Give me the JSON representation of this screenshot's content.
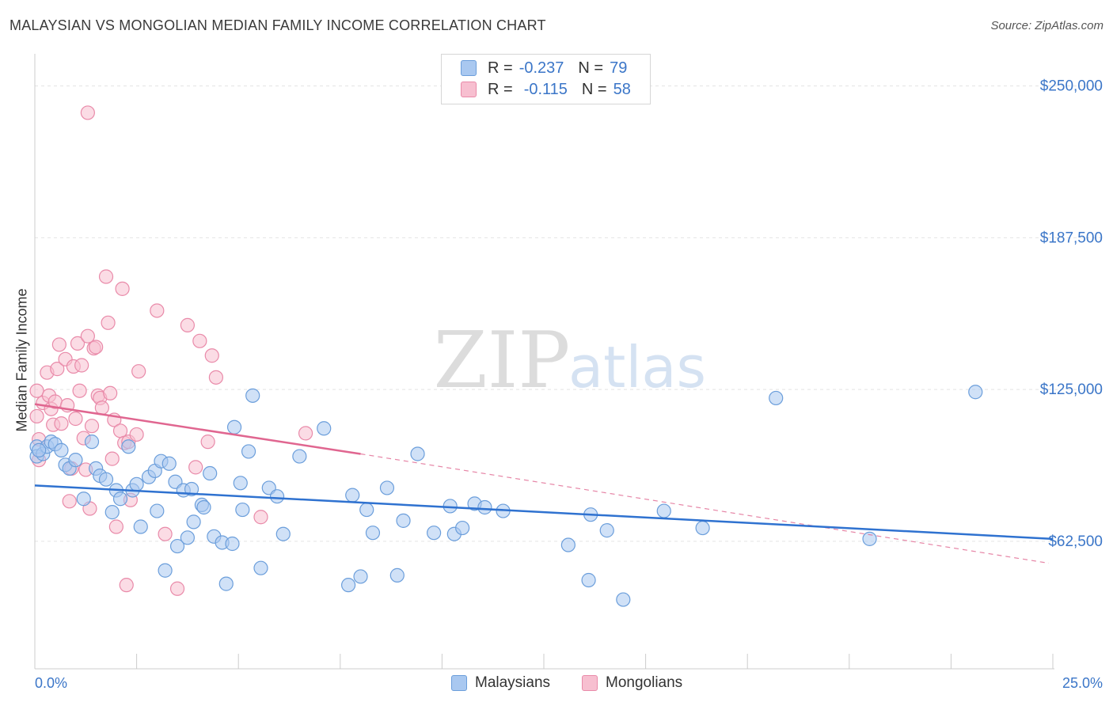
{
  "title": "MALAYSIAN VS MONGOLIAN MEDIAN FAMILY INCOME CORRELATION CHART",
  "source": "Source: ZipAtlas.com",
  "watermark": {
    "zip": "ZIP",
    "atlas": "atlas"
  },
  "legend": {
    "malaysians": {
      "r_label": "R =",
      "r_value": "-0.237",
      "n_label": "N =",
      "n_value": "79"
    },
    "mongolians": {
      "r_label": "R =",
      "r_value": "-0.115",
      "n_label": "N =",
      "n_value": "58"
    }
  },
  "bottom_legend": {
    "malaysians": "Malaysians",
    "mongolians": "Mongolians"
  },
  "colors": {
    "blue_fill": "#a9c8f0",
    "blue_stroke": "#6b9edb",
    "blue_line": "#2f72d0",
    "pink_fill": "#f7bfd0",
    "pink_stroke": "#e98aa9",
    "pink_line": "#e06690",
    "axis_text": "#3b76c8",
    "grid": "#e4e4e4"
  },
  "chart_data": {
    "type": "scatter",
    "title": "MALAYSIAN VS MONGOLIAN MEDIAN FAMILY INCOME CORRELATION CHART",
    "xlabel": "",
    "ylabel": "Median Family Income",
    "xlim": [
      0,
      25
    ],
    "ylim": [
      10000,
      260000
    ],
    "x_tick_labels": [
      "0.0%",
      "25.0%"
    ],
    "y_ticks": [
      62500,
      125000,
      187500,
      250000
    ],
    "y_tick_labels": [
      "$62,500",
      "$125,000",
      "$187,500",
      "$250,000"
    ],
    "series": [
      {
        "name": "Malaysians",
        "r": -0.237,
        "n": 79,
        "trend": {
          "x0": 0,
          "y0": 85500,
          "x1": 25,
          "y1": 63500
        },
        "points": [
          [
            0.05,
            101500
          ],
          [
            0.05,
            97500
          ],
          [
            0.2,
            98500
          ],
          [
            0.3,
            101500
          ],
          [
            0.4,
            103500
          ],
          [
            0.5,
            102500
          ],
          [
            0.65,
            100000
          ],
          [
            0.75,
            94000
          ],
          [
            0.85,
            92500
          ],
          [
            1.0,
            96000
          ],
          [
            1.2,
            80000
          ],
          [
            1.4,
            103500
          ],
          [
            1.5,
            92500
          ],
          [
            1.6,
            89500
          ],
          [
            1.75,
            88000
          ],
          [
            1.9,
            74500
          ],
          [
            2.0,
            83500
          ],
          [
            2.1,
            80000
          ],
          [
            2.3,
            101500
          ],
          [
            2.4,
            83500
          ],
          [
            2.5,
            86000
          ],
          [
            2.6,
            68500
          ],
          [
            2.8,
            89000
          ],
          [
            2.95,
            91500
          ],
          [
            3.0,
            75000
          ],
          [
            3.1,
            95500
          ],
          [
            3.2,
            50500
          ],
          [
            3.3,
            94500
          ],
          [
            3.45,
            87000
          ],
          [
            3.5,
            60500
          ],
          [
            3.65,
            83500
          ],
          [
            3.75,
            64000
          ],
          [
            3.85,
            84000
          ],
          [
            3.9,
            70500
          ],
          [
            4.1,
            77500
          ],
          [
            4.15,
            76500
          ],
          [
            4.3,
            90500
          ],
          [
            4.4,
            64500
          ],
          [
            4.6,
            62000
          ],
          [
            4.7,
            45000
          ],
          [
            4.85,
            61500
          ],
          [
            4.9,
            109500
          ],
          [
            5.05,
            86500
          ],
          [
            5.1,
            75500
          ],
          [
            5.25,
            99500
          ],
          [
            5.35,
            122500
          ],
          [
            5.55,
            51500
          ],
          [
            5.75,
            84500
          ],
          [
            5.95,
            81000
          ],
          [
            6.1,
            65500
          ],
          [
            6.5,
            97500
          ],
          [
            7.1,
            109000
          ],
          [
            7.7,
            44500
          ],
          [
            7.8,
            81500
          ],
          [
            8.0,
            48000
          ],
          [
            8.15,
            75500
          ],
          [
            8.3,
            66000
          ],
          [
            8.65,
            84500
          ],
          [
            8.9,
            48500
          ],
          [
            9.05,
            71000
          ],
          [
            9.4,
            98500
          ],
          [
            9.8,
            66000
          ],
          [
            10.2,
            77000
          ],
          [
            10.3,
            65500
          ],
          [
            10.5,
            68000
          ],
          [
            10.8,
            78000
          ],
          [
            11.05,
            76500
          ],
          [
            11.5,
            75000
          ],
          [
            13.1,
            61000
          ],
          [
            13.6,
            46500
          ],
          [
            13.65,
            73500
          ],
          [
            14.05,
            67000
          ],
          [
            14.45,
            38500
          ],
          [
            15.45,
            75000
          ],
          [
            16.4,
            68000
          ],
          [
            18.2,
            121500
          ],
          [
            20.5,
            63500
          ],
          [
            23.1,
            124000
          ],
          [
            0.1,
            100000
          ]
        ]
      },
      {
        "name": "Mongolians",
        "r": -0.115,
        "n": 58,
        "trend": {
          "x0": 0,
          "y0": 119000,
          "x1": 8.0,
          "y1": 98500
        },
        "trend_ext": {
          "x0": 8.0,
          "y0": 98500,
          "x1": 24.9,
          "y1": 53500
        },
        "points": [
          [
            0.05,
            124500
          ],
          [
            0.05,
            114000
          ],
          [
            0.1,
            104500
          ],
          [
            0.1,
            96000
          ],
          [
            0.2,
            119500
          ],
          [
            0.3,
            132000
          ],
          [
            0.35,
            122500
          ],
          [
            0.4,
            117000
          ],
          [
            0.45,
            110500
          ],
          [
            0.5,
            120000
          ],
          [
            0.55,
            133500
          ],
          [
            0.6,
            143500
          ],
          [
            0.65,
            111000
          ],
          [
            0.75,
            137500
          ],
          [
            0.8,
            118500
          ],
          [
            0.85,
            79000
          ],
          [
            0.9,
            92500
          ],
          [
            0.95,
            134500
          ],
          [
            1.0,
            113000
          ],
          [
            1.05,
            144000
          ],
          [
            1.1,
            124500
          ],
          [
            1.15,
            135000
          ],
          [
            1.2,
            105000
          ],
          [
            1.25,
            92000
          ],
          [
            1.3,
            147000
          ],
          [
            1.35,
            76000
          ],
          [
            1.4,
            110000
          ],
          [
            1.45,
            142000
          ],
          [
            1.5,
            142500
          ],
          [
            1.55,
            122500
          ],
          [
            1.6,
            121500
          ],
          [
            1.65,
            117500
          ],
          [
            1.75,
            171500
          ],
          [
            1.8,
            152500
          ],
          [
            1.85,
            123500
          ],
          [
            1.9,
            96500
          ],
          [
            1.95,
            112500
          ],
          [
            2.0,
            68500
          ],
          [
            2.1,
            108000
          ],
          [
            2.15,
            166500
          ],
          [
            2.2,
            103000
          ],
          [
            2.25,
            44500
          ],
          [
            2.3,
            103500
          ],
          [
            2.35,
            79500
          ],
          [
            2.5,
            106500
          ],
          [
            2.55,
            132500
          ],
          [
            3.0,
            157500
          ],
          [
            3.2,
            65500
          ],
          [
            3.5,
            43000
          ],
          [
            3.75,
            151500
          ],
          [
            3.95,
            93000
          ],
          [
            4.05,
            145000
          ],
          [
            4.25,
            103500
          ],
          [
            4.35,
            139000
          ],
          [
            4.45,
            130000
          ],
          [
            5.55,
            72500
          ],
          [
            6.65,
            107000
          ],
          [
            1.3,
            239000
          ]
        ]
      }
    ]
  }
}
